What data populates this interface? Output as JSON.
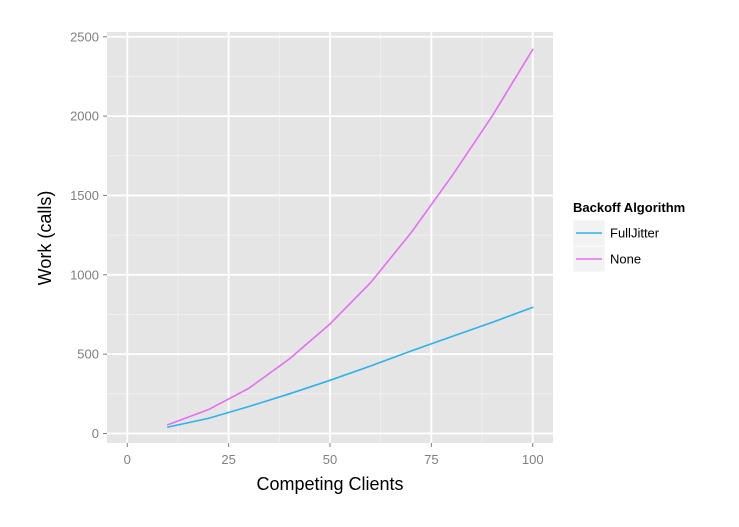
{
  "chart_data": {
    "type": "line",
    "title": "",
    "xlabel": "Competing Clients",
    "ylabel": "Work (calls)",
    "xlim": [
      -5,
      105
    ],
    "ylim": [
      -60,
      2530
    ],
    "x_ticks": [
      0,
      25,
      50,
      75,
      100
    ],
    "y_ticks": [
      0,
      500,
      1000,
      1500,
      2000,
      2500
    ],
    "x_tick_labels": [
      "0",
      "25",
      "50",
      "75",
      "100"
    ],
    "y_tick_labels": [
      "0",
      "500",
      "1000",
      "1500",
      "2000",
      "2500"
    ],
    "grid": true,
    "legend": {
      "title": "Backoff Algorithm",
      "position": "right"
    },
    "x": [
      10,
      20,
      30,
      40,
      50,
      60,
      70,
      80,
      90,
      100
    ],
    "series": [
      {
        "name": "FullJitter",
        "color": "#2eb1ea",
        "values": [
          40,
          95,
          170,
          250,
          335,
          425,
          520,
          610,
          700,
          795
        ]
      },
      {
        "name": "None",
        "color": "#e46ff2",
        "values": [
          55,
          150,
          285,
          470,
          690,
          950,
          1265,
          1620,
          2000,
          2420
        ]
      }
    ]
  }
}
